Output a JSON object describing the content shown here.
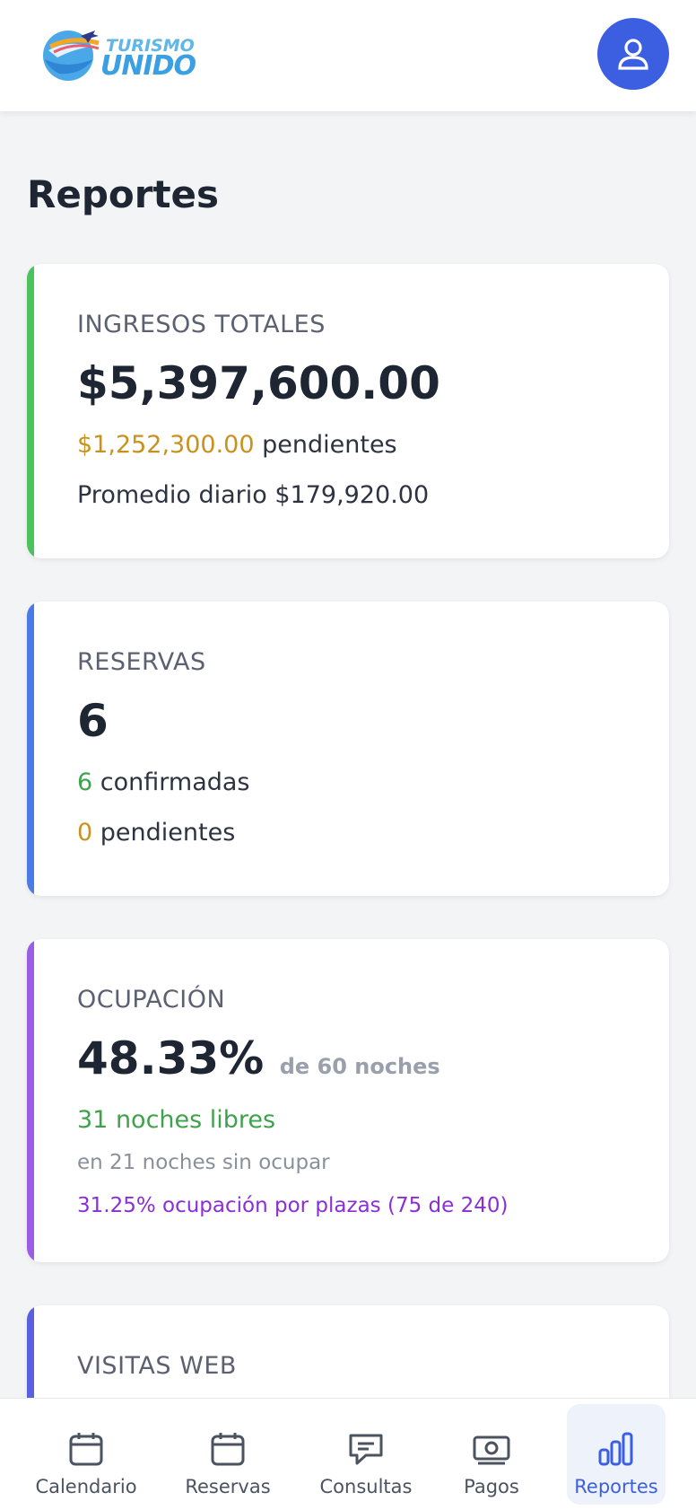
{
  "header": {
    "logo_top": "TURISMO",
    "logo_bottom": "UNIDO",
    "avatar_icon": "user-icon",
    "colors": {
      "avatar_bg": "#3b5fe0",
      "logo": "#3a9fe3"
    }
  },
  "page": {
    "title": "Reportes"
  },
  "cards": {
    "ingresos": {
      "label": "INGRESOS TOTALES",
      "value": "$5,397,600.00",
      "pending_amount": "$1,252,300.00",
      "pending_text": "pendientes",
      "daily_avg": "Promedio diario $179,920.00",
      "accent": "#4cc25c"
    },
    "reservas": {
      "label": "RESERVAS",
      "value": "6",
      "confirmed_count": "6",
      "confirmed_text": "confirmadas",
      "pending_count": "0",
      "pending_text": "pendientes",
      "accent": "#4a7be8"
    },
    "ocupacion": {
      "label": "OCUPACIÓN",
      "value": "48.33%",
      "of_nights": "de 60 noches",
      "free_nights": "31 noches libres",
      "unoccupied": "en 21 noches sin ocupar",
      "by_seats": "31.25% ocupación por plazas (75 de 240)",
      "accent": "#9b5de5"
    },
    "visitas": {
      "label": "VISITAS WEB",
      "accent": "#5b5fe0"
    }
  },
  "nav": {
    "items": [
      {
        "label": "Calendario",
        "icon": "calendar-icon"
      },
      {
        "label": "Reservas",
        "icon": "calendar-icon"
      },
      {
        "label": "Consultas",
        "icon": "chat-icon"
      },
      {
        "label": "Pagos",
        "icon": "cash-icon"
      },
      {
        "label": "Reportes",
        "icon": "bar-chart-icon",
        "active": true
      }
    ]
  }
}
